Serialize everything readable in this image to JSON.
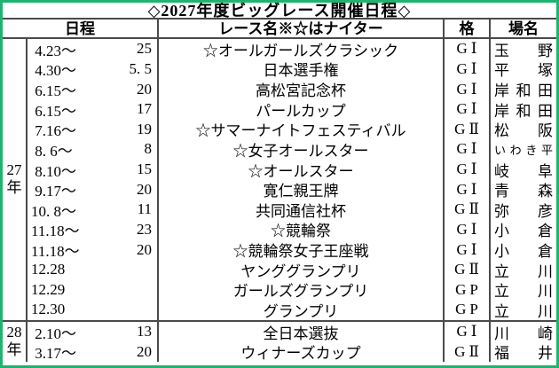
{
  "title": "◇2027年度ビッグレース開催日程◇",
  "header": {
    "date": "日程",
    "race": "レース名※☆はナイター",
    "grade": "格",
    "venue": "場名"
  },
  "sections": [
    {
      "year": "27年",
      "rows": [
        {
          "date_start": " 4.23～",
          "date_end": "25",
          "race": "☆オールガールズクラシック",
          "grade": "GⅠ",
          "venue": "玉野"
        },
        {
          "date_start": " 4.30～",
          "date_end": "5. 5",
          "race": "日本選手権",
          "grade": "GⅠ",
          "venue": "平塚"
        },
        {
          "date_start": " 6.15～",
          "date_end": "20",
          "race": "高松宮記念杯",
          "grade": "GⅠ",
          "venue": "岸和田"
        },
        {
          "date_start": " 6.15～",
          "date_end": "17",
          "race": "パールカップ",
          "grade": "GⅠ",
          "venue": "岸和田"
        },
        {
          "date_start": " 7.16～",
          "date_end": "19",
          "race": "☆サマーナイトフェスティバル",
          "grade": "GⅡ",
          "venue": "松阪"
        },
        {
          "date_start": " 8. 6～",
          "date_end": "8",
          "race": "☆女子オールスター",
          "grade": "GⅠ",
          "venue": "いわき平"
        },
        {
          "date_start": " 8.10～",
          "date_end": "15",
          "race": "☆オールスター",
          "grade": "GⅠ",
          "venue": "岐阜"
        },
        {
          "date_start": " 9.17～",
          "date_end": "20",
          "race": "寛仁親王牌",
          "grade": "GⅠ",
          "venue": "青森"
        },
        {
          "date_start": "10. 8～",
          "date_end": "11",
          "race": "共同通信社杯",
          "grade": "GⅡ",
          "venue": "弥彦"
        },
        {
          "date_start": "11.18～",
          "date_end": "23",
          "race": "☆競輪祭",
          "grade": "GⅠ",
          "venue": "小倉"
        },
        {
          "date_start": "11.18～",
          "date_end": "20",
          "race": "☆競輪祭女子王座戦",
          "grade": "GⅠ",
          "venue": "小倉"
        },
        {
          "date_start": "12.28",
          "date_end": "",
          "race": "ヤンググランプリ",
          "grade": "GⅡ",
          "venue": "立川"
        },
        {
          "date_start": "12.29",
          "date_end": "",
          "race": "ガールズグランプリ",
          "grade": "GP",
          "venue": "立川"
        },
        {
          "date_start": "12.30",
          "date_end": "",
          "race": "グランプリ",
          "grade": "GP",
          "venue": "立川"
        }
      ]
    },
    {
      "year": "28年",
      "rows": [
        {
          "date_start": " 2.10～",
          "date_end": "13",
          "race": "全日本選抜",
          "grade": "GⅠ",
          "venue": "川崎"
        },
        {
          "date_start": " 3.17～",
          "date_end": "20",
          "race": "ウィナーズカップ",
          "grade": "GⅡ",
          "venue": "福井"
        }
      ]
    }
  ],
  "colors": {
    "frame_border": "#1db46e",
    "grid_line": "#4a4a4a",
    "text": "#000000",
    "background": "#ffffff"
  }
}
